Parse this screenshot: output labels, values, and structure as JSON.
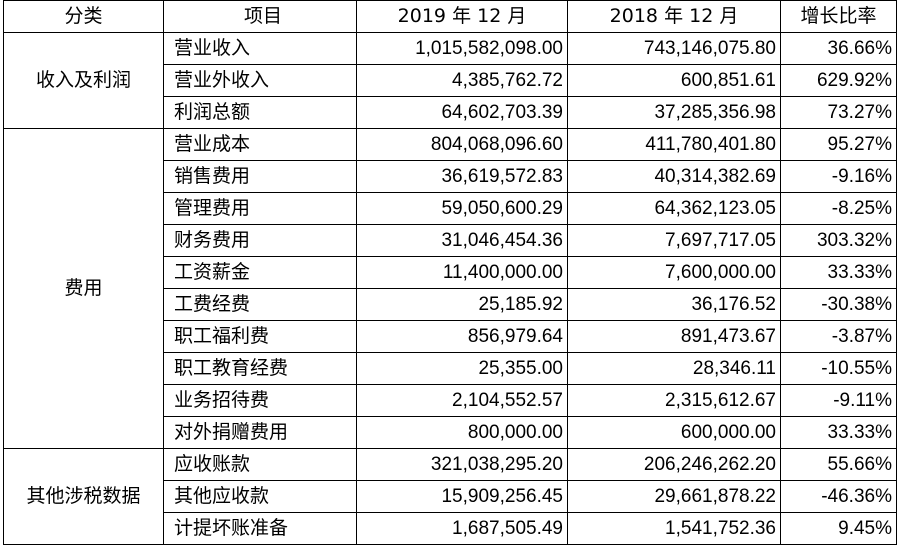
{
  "headers": {
    "category": "分类",
    "item": "项目",
    "y2019": "2019 年 12 月",
    "y2018": "2018 年 12 月",
    "growth": "增长比率"
  },
  "groups": [
    {
      "category": "收入及利润",
      "rows": [
        {
          "item": "营业收入",
          "y2019": "1,015,582,098.00",
          "y2018": "743,146,075.80",
          "growth": "36.66%"
        },
        {
          "item": "营业外收入",
          "y2019": "4,385,762.72",
          "y2018": "600,851.61",
          "growth": "629.92%"
        },
        {
          "item": "利润总额",
          "y2019": "64,602,703.39",
          "y2018": "37,285,356.98",
          "growth": "73.27%"
        }
      ]
    },
    {
      "category": "费用",
      "rows": [
        {
          "item": "营业成本",
          "y2019": "804,068,096.60",
          "y2018": "411,780,401.80",
          "growth": "95.27%"
        },
        {
          "item": "销售费用",
          "y2019": "36,619,572.83",
          "y2018": "40,314,382.69",
          "growth": "-9.16%"
        },
        {
          "item": "管理费用",
          "y2019": "59,050,600.29",
          "y2018": "64,362,123.05",
          "growth": "-8.25%"
        },
        {
          "item": "财务费用",
          "y2019": "31,046,454.36",
          "y2018": "7,697,717.05",
          "growth": "303.32%"
        },
        {
          "item": "工资薪金",
          "y2019": "11,400,000.00",
          "y2018": "7,600,000.00",
          "growth": "33.33%"
        },
        {
          "item": "工费经费",
          "y2019": "25,185.92",
          "y2018": "36,176.52",
          "growth": "-30.38%"
        },
        {
          "item": "职工福利费",
          "y2019": "856,979.64",
          "y2018": "891,473.67",
          "growth": "-3.87%"
        },
        {
          "item": "职工教育经费",
          "y2019": "25,355.00",
          "y2018": "28,346.11",
          "growth": "-10.55%"
        },
        {
          "item": "业务招待费",
          "y2019": "2,104,552.57",
          "y2018": "2,315,612.67",
          "growth": "-9.11%"
        },
        {
          "item": "对外捐赠费用",
          "y2019": "800,000.00",
          "y2018": "600,000.00",
          "growth": "33.33%"
        }
      ]
    },
    {
      "category": "其他涉税数据",
      "rows": [
        {
          "item": "应收账款",
          "y2019": "321,038,295.20",
          "y2018": "206,246,262.20",
          "growth": "55.66%"
        },
        {
          "item": "其他应收款",
          "y2019": "15,909,256.45",
          "y2018": "29,661,878.22",
          "growth": "-46.36%"
        },
        {
          "item": "计提坏账准备",
          "y2019": "1,687,505.49",
          "y2018": "1,541,752.36",
          "growth": "9.45%"
        }
      ]
    }
  ]
}
